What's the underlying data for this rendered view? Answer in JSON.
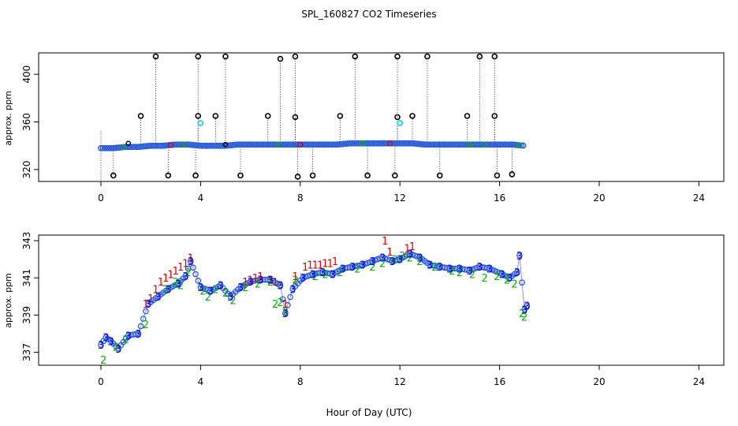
{
  "colors": {
    "axis": "#000000",
    "outlier": "#000000",
    "cyan_flag": "#1fd4d4",
    "series1": "#e00000",
    "series2": "#00b000",
    "series3": "#0000e0",
    "circle": "#2a5cd8"
  },
  "chart_data": [
    {
      "type": "scatter",
      "title": "SPL_160827  CO2 Timeseries",
      "ylabel": "approx. ppm",
      "xlim": [
        -2.5,
        25
      ],
      "ylim": [
        310,
        418
      ],
      "xticks": [
        0,
        4,
        8,
        12,
        16,
        20,
        24
      ],
      "yticks": [
        320,
        360,
        400
      ],
      "baseline": {
        "x": [
          0.0,
          0.5,
          1.0,
          1.5,
          2.0,
          2.5,
          3.0,
          3.5,
          4.0,
          4.5,
          5.0,
          5.5,
          6.0,
          6.5,
          7.0,
          7.5,
          8.0,
          8.5,
          9.0,
          9.5,
          10.0,
          10.5,
          11.0,
          11.5,
          12.0,
          12.5,
          13.0,
          13.5,
          14.0,
          14.5,
          15.0,
          15.5,
          16.0,
          16.5,
          17.0
        ],
        "y": [
          338,
          338,
          339,
          339,
          340,
          340,
          341,
          341,
          340,
          340,
          340,
          341,
          341,
          341,
          341,
          341,
          341,
          341,
          341,
          341,
          342,
          342,
          342,
          342,
          342,
          342,
          341,
          341,
          341,
          341,
          341,
          341,
          341,
          341,
          340
        ]
      },
      "outliers_high": [
        {
          "x": 1.6,
          "y": 365
        },
        {
          "x": 2.2,
          "y": 415
        },
        {
          "x": 3.9,
          "y": 415
        },
        {
          "x": 3.9,
          "y": 365
        },
        {
          "x": 4.6,
          "y": 365
        },
        {
          "x": 5.0,
          "y": 415
        },
        {
          "x": 6.7,
          "y": 365
        },
        {
          "x": 7.2,
          "y": 413
        },
        {
          "x": 7.8,
          "y": 415
        },
        {
          "x": 7.8,
          "y": 364
        },
        {
          "x": 9.6,
          "y": 365
        },
        {
          "x": 10.2,
          "y": 415
        },
        {
          "x": 11.9,
          "y": 415
        },
        {
          "x": 11.9,
          "y": 364
        },
        {
          "x": 12.5,
          "y": 365
        },
        {
          "x": 13.1,
          "y": 415
        },
        {
          "x": 14.7,
          "y": 365
        },
        {
          "x": 15.2,
          "y": 415
        },
        {
          "x": 15.8,
          "y": 415
        },
        {
          "x": 15.8,
          "y": 365
        }
      ],
      "outliers_low": [
        {
          "x": 0.5,
          "y": 315
        },
        {
          "x": 2.7,
          "y": 315
        },
        {
          "x": 3.8,
          "y": 315
        },
        {
          "x": 5.6,
          "y": 315
        },
        {
          "x": 7.9,
          "y": 314
        },
        {
          "x": 8.5,
          "y": 315
        },
        {
          "x": 10.7,
          "y": 315
        },
        {
          "x": 11.8,
          "y": 315
        },
        {
          "x": 13.6,
          "y": 315
        },
        {
          "x": 15.9,
          "y": 315
        },
        {
          "x": 16.5,
          "y": 316
        }
      ],
      "cyan_points": [
        {
          "x": 4.0,
          "y": 359
        },
        {
          "x": 12.0,
          "y": 359
        }
      ],
      "small_marks": [
        {
          "x": 1.1,
          "y": 342
        },
        {
          "x": 5.0,
          "y": 341
        }
      ]
    },
    {
      "type": "scatter",
      "ylabel": "approx. ppm",
      "xlabel": "Hour of Day (UTC)",
      "xlim": [
        -2.5,
        25
      ],
      "ylim": [
        336.3,
        343.3
      ],
      "xticks": [
        0,
        4,
        8,
        12,
        16,
        20,
        24
      ],
      "yticks": [
        337,
        339,
        341,
        343
      ],
      "series": [
        {
          "name": "1",
          "x": [
            1.8,
            2.0,
            2.2,
            2.4,
            2.6,
            2.8,
            3.0,
            3.2,
            3.4,
            3.6,
            5.8,
            6.0,
            6.2,
            6.4,
            6.8,
            7.0,
            7.4,
            7.8,
            8.2,
            8.4,
            8.6,
            8.8,
            9.0,
            9.2,
            9.4,
            11.4,
            11.6,
            12.3,
            12.5
          ],
          "values": [
            339.6,
            339.9,
            340.4,
            340.8,
            341.0,
            341.2,
            341.4,
            341.6,
            341.8,
            342.1,
            340.8,
            340.9,
            341.0,
            341.1,
            340.9,
            340.8,
            339.6,
            341.1,
            341.6,
            341.7,
            341.7,
            341.7,
            341.8,
            341.8,
            341.9,
            343.0,
            342.4,
            342.6,
            342.7
          ]
        },
        {
          "name": "2",
          "x": [
            0.1,
            0.6,
            1.0,
            1.8,
            2.6,
            3.0,
            3.2,
            3.5,
            4.1,
            4.3,
            4.6,
            5.0,
            5.3,
            5.8,
            6.3,
            6.8,
            7.0,
            7.2,
            7.4,
            7.8,
            8.6,
            9.0,
            9.6,
            10.3,
            10.9,
            11.3,
            11.8,
            12.1,
            12.4,
            12.8,
            13.4,
            14.1,
            14.4,
            14.9,
            15.4,
            15.9,
            16.3,
            16.6,
            16.9,
            17.0
          ],
          "values": [
            336.6,
            337.3,
            337.7,
            338.5,
            340.4,
            340.8,
            340.6,
            341.3,
            340.3,
            340.0,
            340.4,
            340.2,
            339.8,
            340.5,
            340.7,
            340.8,
            339.6,
            339.7,
            339.2,
            340.9,
            341.1,
            341.2,
            341.3,
            341.5,
            341.6,
            341.8,
            342.0,
            342.2,
            342.1,
            341.9,
            341.6,
            341.4,
            341.3,
            341.2,
            341.0,
            341.1,
            340.9,
            340.7,
            339.1,
            338.9
          ]
        },
        {
          "name": "3",
          "x": [
            0.0,
            0.2,
            0.4,
            0.7,
            1.1,
            1.5,
            1.9,
            2.3,
            2.7,
            3.1,
            3.4,
            3.6,
            4.0,
            4.4,
            4.8,
            5.2,
            5.6,
            6.0,
            6.4,
            6.8,
            7.2,
            7.4,
            7.7,
            8.1,
            8.5,
            8.9,
            9.3,
            9.7,
            10.1,
            10.5,
            10.9,
            11.3,
            11.7,
            12.0,
            12.4,
            12.8,
            13.2,
            13.6,
            14.0,
            14.4,
            14.8,
            15.2,
            15.6,
            16.1,
            16.4,
            16.7,
            16.8,
            17.0,
            17.1
          ],
          "values": [
            337.4,
            337.8,
            337.6,
            337.2,
            337.9,
            338.0,
            339.6,
            340.0,
            340.4,
            340.7,
            341.1,
            341.9,
            340.5,
            340.3,
            340.6,
            340.0,
            340.5,
            340.8,
            340.9,
            340.9,
            340.6,
            339.1,
            340.4,
            341.0,
            341.2,
            341.3,
            341.2,
            341.5,
            341.6,
            341.7,
            341.9,
            342.1,
            341.9,
            342.0,
            342.3,
            342.1,
            341.7,
            341.6,
            341.5,
            341.5,
            341.4,
            341.6,
            341.5,
            341.2,
            341.0,
            341.3,
            342.2,
            339.3,
            339.5
          ]
        }
      ]
    }
  ]
}
